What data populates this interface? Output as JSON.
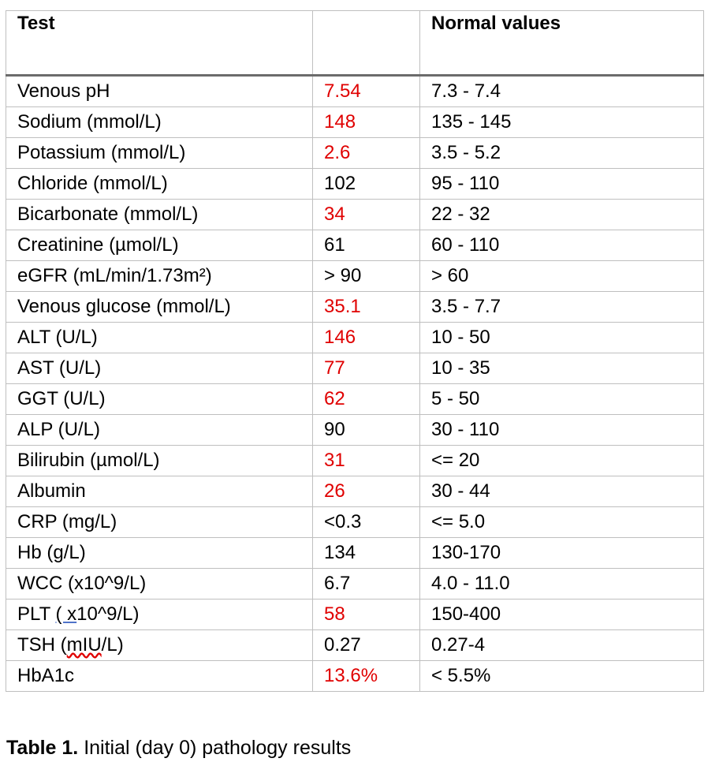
{
  "table": {
    "headers": [
      "Test",
      "",
      "Normal values"
    ],
    "rows": [
      {
        "test": "Venous pH",
        "value": "7.54",
        "normal": "7.3 - 7.4",
        "abnormal": true
      },
      {
        "test": "Sodium (mmol/L)",
        "value": "148",
        "normal": "135 - 145",
        "abnormal": true
      },
      {
        "test": "Potassium (mmol/L)",
        "value": "2.6",
        "normal": "3.5 - 5.2",
        "abnormal": true
      },
      {
        "test": "Chloride (mmol/L)",
        "value": "102",
        "normal": "95 - 110",
        "abnormal": false
      },
      {
        "test": "Bicarbonate (mmol/L)",
        "value": "34",
        "normal": "22 - 32",
        "abnormal": true
      },
      {
        "test": "Creatinine (µmol/L)",
        "value": "61",
        "normal": "60 - 110",
        "abnormal": false
      },
      {
        "test": "eGFR (mL/min/1.73m²)",
        "value": "> 90",
        "normal": "> 60",
        "abnormal": false
      },
      {
        "test": "Venous glucose (mmol/L)",
        "value": "35.1",
        "normal": "3.5 - 7.7",
        "abnormal": true
      },
      {
        "test": "ALT (U/L)",
        "value": "146",
        "normal": "10 - 50",
        "abnormal": true
      },
      {
        "test": "AST (U/L)",
        "value": "77",
        "normal": "10 - 35",
        "abnormal": true
      },
      {
        "test": "GGT (U/L)",
        "value": "62",
        "normal": "5 - 50",
        "abnormal": true
      },
      {
        "test": "ALP (U/L)",
        "value": "90",
        "normal": "30 - 110",
        "abnormal": false
      },
      {
        "test": "Bilirubin (µmol/L)",
        "value": "31",
        "normal": "<= 20",
        "abnormal": true
      },
      {
        "test": "Albumin",
        "value": "26",
        "normal": "30 - 44",
        "abnormal": true
      },
      {
        "test": "CRP (mg/L)",
        "value": "<0.3",
        "normal": "<= 5.0",
        "abnormal": false
      },
      {
        "test": "Hb (g/L)",
        "value": "134",
        "normal": "130-170",
        "abnormal": false
      },
      {
        "test": "WCC (x10^9/L)",
        "value": "6.7",
        "normal": "4.0 - 11.0",
        "abnormal": false
      },
      {
        "test": "PLT ( x10^9/L)",
        "value": "58",
        "normal": "150-400",
        "abnormal": true
      },
      {
        "test": "TSH (mIU/L)",
        "value": "0.27",
        "normal": "0.27-4",
        "abnormal": false
      },
      {
        "test": "HbA1c",
        "value": "13.6%",
        "normal": "< 5.5%",
        "abnormal": true
      }
    ]
  },
  "caption": {
    "label": "Table 1.",
    "text": " Initial (day 0) pathology results"
  },
  "colors": {
    "abnormal": "#e00000",
    "normal_text": "#000000",
    "grid": "#bfbfbf",
    "header_rule": "#6b6b6b"
  }
}
